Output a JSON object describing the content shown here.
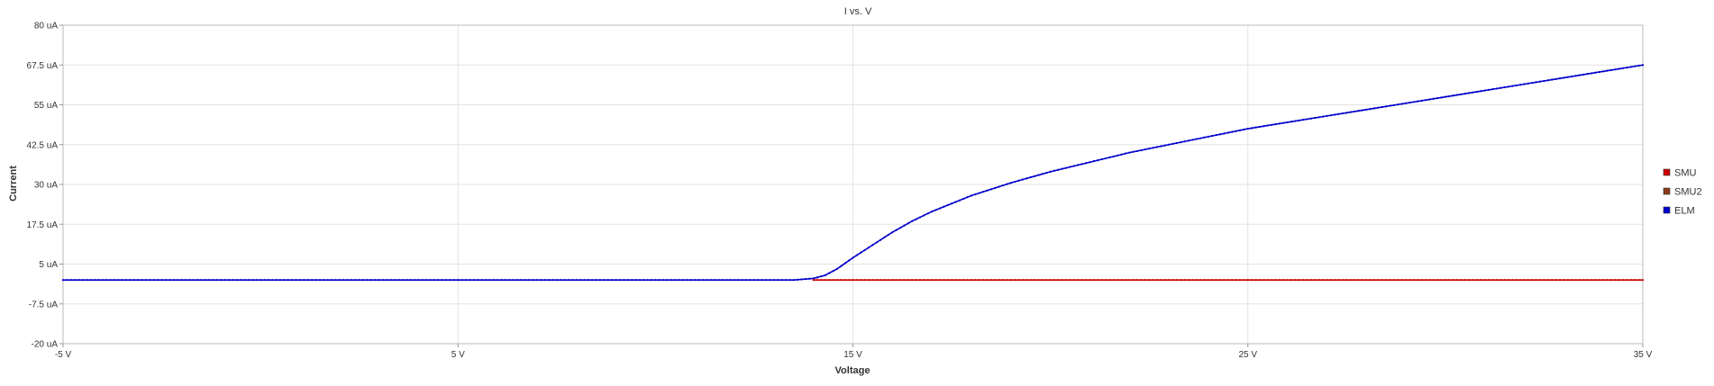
{
  "chart_data": {
    "type": "line",
    "title": "I vs. V",
    "xlabel": "Voltage",
    "ylabel": "Current",
    "xlim": [
      -5,
      35
    ],
    "ylim": [
      -20,
      80
    ],
    "x_unit": "V",
    "y_unit": "uA",
    "x_ticks": [
      -5,
      5,
      15,
      25,
      35
    ],
    "x_tick_labels": [
      "-5 V",
      "5 V",
      "15 V",
      "25 V",
      "35 V"
    ],
    "y_ticks": [
      -20,
      -7.5,
      5,
      17.5,
      30,
      42.5,
      55,
      67.5,
      80
    ],
    "y_tick_labels": [
      "-20 uA",
      "-7.5 uA",
      "5 uA",
      "17.5 uA",
      "30 uA",
      "42.5 uA",
      "55 uA",
      "67.5 uA",
      "80 uA"
    ],
    "grid": true,
    "legend_position": "right",
    "series": [
      {
        "name": "SMU",
        "color": "#cc0000",
        "x": [
          14,
          15,
          17,
          20,
          25,
          30,
          35
        ],
        "values": [
          0,
          0,
          0,
          0,
          0,
          0,
          0
        ]
      },
      {
        "name": "SMU2",
        "color": "#8b3a1a",
        "x": [],
        "values": []
      },
      {
        "name": "ELM",
        "color": "#0000cc",
        "x": [
          -5,
          0,
          5,
          10,
          13.5,
          14,
          14.3,
          14.6,
          15,
          15.5,
          16,
          16.5,
          17,
          17.5,
          18,
          19,
          20,
          21,
          22,
          23,
          24,
          25,
          26,
          27,
          28,
          29,
          30,
          31,
          32,
          33,
          34,
          35
        ],
        "values": [
          0,
          0,
          0,
          0,
          0,
          0.5,
          1.5,
          3.5,
          7,
          11,
          15,
          18.5,
          21.5,
          24,
          26.5,
          30.5,
          34,
          37,
          40,
          42.5,
          45,
          47.5,
          49.5,
          51.5,
          53.5,
          55.5,
          57.5,
          59.5,
          61.5,
          63.5,
          65.5,
          67.5
        ]
      }
    ]
  }
}
